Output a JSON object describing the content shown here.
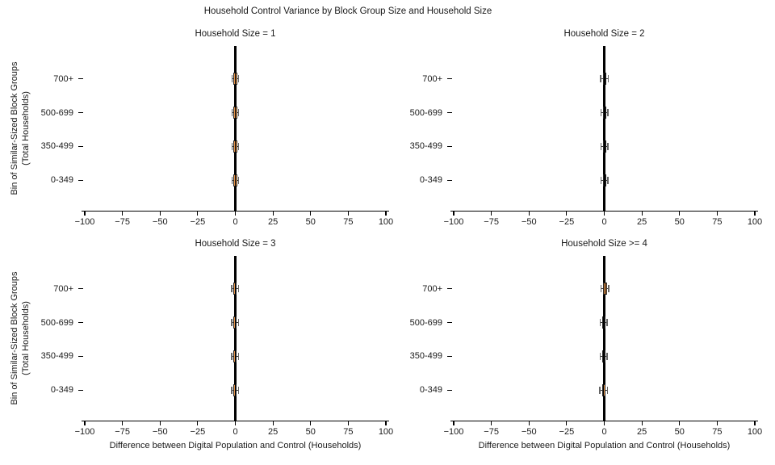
{
  "figure": {
    "title": "Household Control Variance by Block Group Size and Household Size",
    "background": "#ffffff"
  },
  "axes": {
    "x_label": "Difference between Digital Population and Control (Households)",
    "y_label_line1": "Bin of Similar-Sized Block Groups",
    "y_label_line2": "(Total Households)",
    "x_tick_labels": [
      "−100",
      "−75",
      "−50",
      "−25",
      "0",
      "25",
      "50",
      "75",
      "100"
    ],
    "categories": [
      "700+",
      "500-699",
      "350-499",
      "0-349"
    ]
  },
  "colors": {
    "box_fill": "#e6954a",
    "box_edge": "#262626",
    "median": "#000000",
    "whisker": "#333333",
    "whisker_cap": "#666666",
    "zero_line": "#000000",
    "axis_line": "#000000",
    "text": "#1a1a1a",
    "background": "#ffffff"
  },
  "chart_data": {
    "type": "boxplot",
    "orientation": "horizontal",
    "grid": "2x2 facets by household size",
    "title": "Household Control Variance by Block Group Size and Household Size",
    "xlabel": "Difference between Digital Population and Control (Households)",
    "ylabel": "Bin of Similar-Sized Block Groups (Total Households)",
    "xlim": [
      -100,
      100
    ],
    "x_ticks": [
      -100,
      -75,
      -50,
      -25,
      0,
      25,
      50,
      75,
      100
    ],
    "categories": [
      "700+",
      "500-699",
      "350-499",
      "0-349"
    ],
    "reference_line_x": 0,
    "legend": "none",
    "panels": [
      {
        "title": "Household Size = 1",
        "boxes": [
          {
            "category": "700+",
            "whisker_low": -2.3,
            "q1": -1.1,
            "median": 0.0,
            "q3": 1.1,
            "whisker_high": 2.3
          },
          {
            "category": "500-699",
            "whisker_low": -2.3,
            "q1": -1.1,
            "median": 0.0,
            "q3": 1.1,
            "whisker_high": 2.3
          },
          {
            "category": "350-499",
            "whisker_low": -2.3,
            "q1": -1.1,
            "median": 0.0,
            "q3": 1.1,
            "whisker_high": 2.3
          },
          {
            "category": "0-349",
            "whisker_low": -2.3,
            "q1": -1.1,
            "median": 0.0,
            "q3": 1.1,
            "whisker_high": 2.3
          }
        ]
      },
      {
        "title": "Household Size = 2",
        "boxes": [
          {
            "category": "700+",
            "whisker_low": -2.4,
            "q1": -0.6,
            "median": 0.4,
            "q3": 1.5,
            "whisker_high": 2.6
          },
          {
            "category": "500-699",
            "whisker_low": -2.2,
            "q1": -0.6,
            "median": 0.3,
            "q3": 1.4,
            "whisker_high": 2.4
          },
          {
            "category": "350-499",
            "whisker_low": -2.2,
            "q1": -0.6,
            "median": 0.3,
            "q3": 1.4,
            "whisker_high": 2.4
          },
          {
            "category": "0-349",
            "whisker_low": -2.3,
            "q1": -0.7,
            "median": 0.2,
            "q3": 1.3,
            "whisker_high": 2.4
          }
        ]
      },
      {
        "title": "Household Size = 3",
        "boxes": [
          {
            "category": "700+",
            "whisker_low": -2.4,
            "q1": -1.1,
            "median": -0.1,
            "q3": 1.0,
            "whisker_high": 2.2
          },
          {
            "category": "500-699",
            "whisker_low": -2.4,
            "q1": -1.1,
            "median": -0.1,
            "q3": 1.0,
            "whisker_high": 2.2
          },
          {
            "category": "350-499",
            "whisker_low": -2.4,
            "q1": -1.1,
            "median": -0.1,
            "q3": 1.0,
            "whisker_high": 2.2
          },
          {
            "category": "0-349",
            "whisker_low": -2.4,
            "q1": -1.1,
            "median": -0.1,
            "q3": 1.0,
            "whisker_high": 2.2
          }
        ]
      },
      {
        "title": "Household Size >= 4",
        "boxes": [
          {
            "category": "700+",
            "whisker_low": -2.0,
            "q1": -1.0,
            "median": 0.6,
            "q3": 1.8,
            "whisker_high": 3.0
          },
          {
            "category": "500-699",
            "whisker_low": -2.6,
            "q1": -1.4,
            "median": -0.4,
            "q3": 0.7,
            "whisker_high": 1.9
          },
          {
            "category": "350-499",
            "whisker_low": -2.6,
            "q1": -1.4,
            "median": -0.4,
            "q3": 0.7,
            "whisker_high": 1.9
          },
          {
            "category": "0-349",
            "whisker_low": -3.0,
            "q1": -1.6,
            "median": -0.5,
            "q3": 0.8,
            "whisker_high": 2.1
          }
        ]
      }
    ]
  }
}
